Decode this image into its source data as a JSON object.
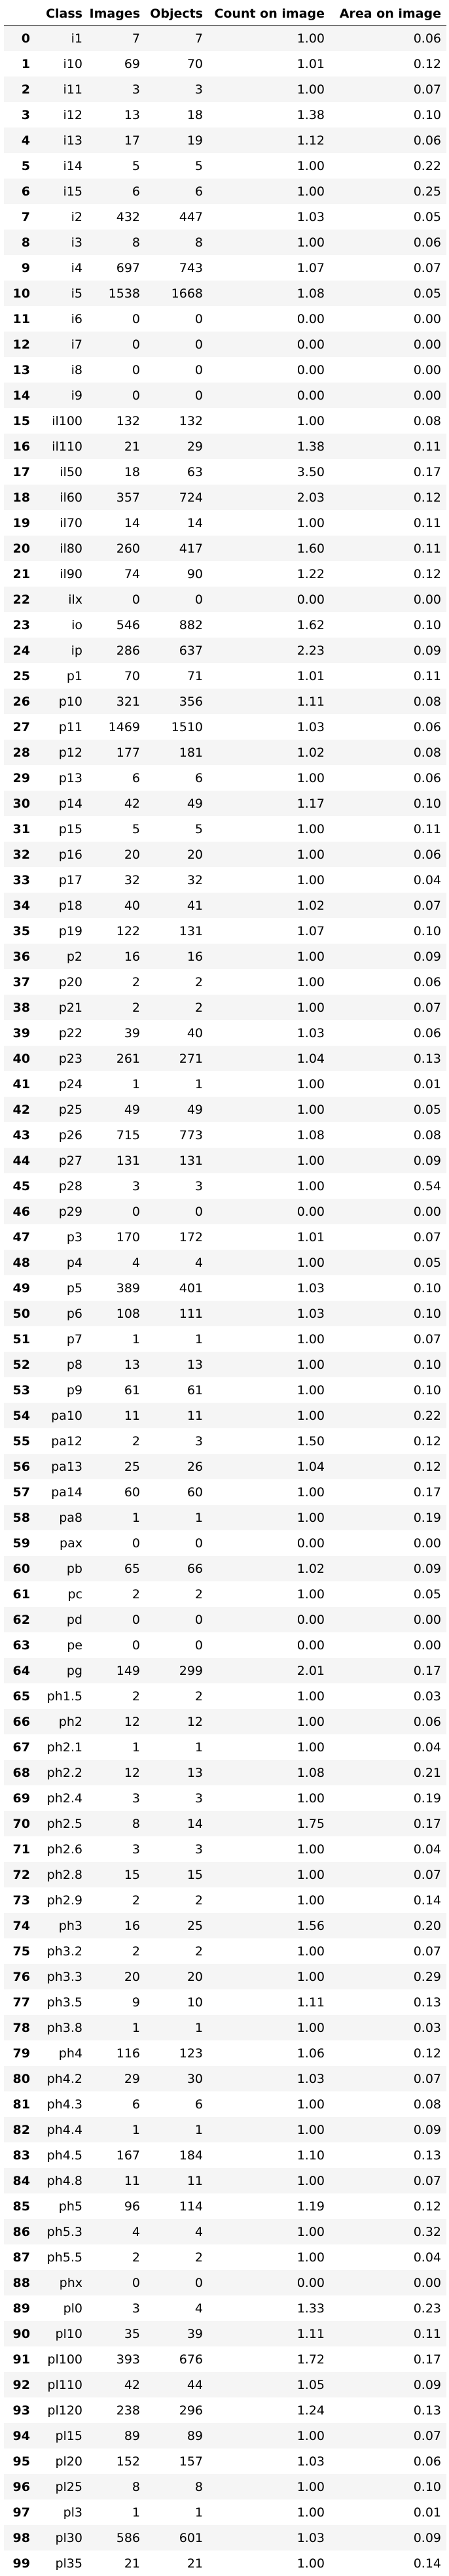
{
  "columns": [
    "",
    "Class",
    "Images",
    "Objects",
    "Count on image",
    "Area on image"
  ],
  "rows": [
    [
      "0",
      "i1",
      "7",
      "7",
      "1.00",
      "0.06"
    ],
    [
      "1",
      "i10",
      "69",
      "70",
      "1.01",
      "0.12"
    ],
    [
      "2",
      "i11",
      "3",
      "3",
      "1.00",
      "0.07"
    ],
    [
      "3",
      "i12",
      "13",
      "18",
      "1.38",
      "0.10"
    ],
    [
      "4",
      "i13",
      "17",
      "19",
      "1.12",
      "0.06"
    ],
    [
      "5",
      "i14",
      "5",
      "5",
      "1.00",
      "0.22"
    ],
    [
      "6",
      "i15",
      "6",
      "6",
      "1.00",
      "0.25"
    ],
    [
      "7",
      "i2",
      "432",
      "447",
      "1.03",
      "0.05"
    ],
    [
      "8",
      "i3",
      "8",
      "8",
      "1.00",
      "0.06"
    ],
    [
      "9",
      "i4",
      "697",
      "743",
      "1.07",
      "0.07"
    ],
    [
      "10",
      "i5",
      "1538",
      "1668",
      "1.08",
      "0.05"
    ],
    [
      "11",
      "i6",
      "0",
      "0",
      "0.00",
      "0.00"
    ],
    [
      "12",
      "i7",
      "0",
      "0",
      "0.00",
      "0.00"
    ],
    [
      "13",
      "i8",
      "0",
      "0",
      "0.00",
      "0.00"
    ],
    [
      "14",
      "i9",
      "0",
      "0",
      "0.00",
      "0.00"
    ],
    [
      "15",
      "il100",
      "132",
      "132",
      "1.00",
      "0.08"
    ],
    [
      "16",
      "il110",
      "21",
      "29",
      "1.38",
      "0.11"
    ],
    [
      "17",
      "il50",
      "18",
      "63",
      "3.50",
      "0.17"
    ],
    [
      "18",
      "il60",
      "357",
      "724",
      "2.03",
      "0.12"
    ],
    [
      "19",
      "il70",
      "14",
      "14",
      "1.00",
      "0.11"
    ],
    [
      "20",
      "il80",
      "260",
      "417",
      "1.60",
      "0.11"
    ],
    [
      "21",
      "il90",
      "74",
      "90",
      "1.22",
      "0.12"
    ],
    [
      "22",
      "ilx",
      "0",
      "0",
      "0.00",
      "0.00"
    ],
    [
      "23",
      "io",
      "546",
      "882",
      "1.62",
      "0.10"
    ],
    [
      "24",
      "ip",
      "286",
      "637",
      "2.23",
      "0.09"
    ],
    [
      "25",
      "p1",
      "70",
      "71",
      "1.01",
      "0.11"
    ],
    [
      "26",
      "p10",
      "321",
      "356",
      "1.11",
      "0.08"
    ],
    [
      "27",
      "p11",
      "1469",
      "1510",
      "1.03",
      "0.06"
    ],
    [
      "28",
      "p12",
      "177",
      "181",
      "1.02",
      "0.08"
    ],
    [
      "29",
      "p13",
      "6",
      "6",
      "1.00",
      "0.06"
    ],
    [
      "30",
      "p14",
      "42",
      "49",
      "1.17",
      "0.10"
    ],
    [
      "31",
      "p15",
      "5",
      "5",
      "1.00",
      "0.11"
    ],
    [
      "32",
      "p16",
      "20",
      "20",
      "1.00",
      "0.06"
    ],
    [
      "33",
      "p17",
      "32",
      "32",
      "1.00",
      "0.04"
    ],
    [
      "34",
      "p18",
      "40",
      "41",
      "1.02",
      "0.07"
    ],
    [
      "35",
      "p19",
      "122",
      "131",
      "1.07",
      "0.10"
    ],
    [
      "36",
      "p2",
      "16",
      "16",
      "1.00",
      "0.09"
    ],
    [
      "37",
      "p20",
      "2",
      "2",
      "1.00",
      "0.06"
    ],
    [
      "38",
      "p21",
      "2",
      "2",
      "1.00",
      "0.07"
    ],
    [
      "39",
      "p22",
      "39",
      "40",
      "1.03",
      "0.06"
    ],
    [
      "40",
      "p23",
      "261",
      "271",
      "1.04",
      "0.13"
    ],
    [
      "41",
      "p24",
      "1",
      "1",
      "1.00",
      "0.01"
    ],
    [
      "42",
      "p25",
      "49",
      "49",
      "1.00",
      "0.05"
    ],
    [
      "43",
      "p26",
      "715",
      "773",
      "1.08",
      "0.08"
    ],
    [
      "44",
      "p27",
      "131",
      "131",
      "1.00",
      "0.09"
    ],
    [
      "45",
      "p28",
      "3",
      "3",
      "1.00",
      "0.54"
    ],
    [
      "46",
      "p29",
      "0",
      "0",
      "0.00",
      "0.00"
    ],
    [
      "47",
      "p3",
      "170",
      "172",
      "1.01",
      "0.07"
    ],
    [
      "48",
      "p4",
      "4",
      "4",
      "1.00",
      "0.05"
    ],
    [
      "49",
      "p5",
      "389",
      "401",
      "1.03",
      "0.10"
    ],
    [
      "50",
      "p6",
      "108",
      "111",
      "1.03",
      "0.10"
    ],
    [
      "51",
      "p7",
      "1",
      "1",
      "1.00",
      "0.07"
    ],
    [
      "52",
      "p8",
      "13",
      "13",
      "1.00",
      "0.10"
    ],
    [
      "53",
      "p9",
      "61",
      "61",
      "1.00",
      "0.10"
    ],
    [
      "54",
      "pa10",
      "11",
      "11",
      "1.00",
      "0.22"
    ],
    [
      "55",
      "pa12",
      "2",
      "3",
      "1.50",
      "0.12"
    ],
    [
      "56",
      "pa13",
      "25",
      "26",
      "1.04",
      "0.12"
    ],
    [
      "57",
      "pa14",
      "60",
      "60",
      "1.00",
      "0.17"
    ],
    [
      "58",
      "pa8",
      "1",
      "1",
      "1.00",
      "0.19"
    ],
    [
      "59",
      "pax",
      "0",
      "0",
      "0.00",
      "0.00"
    ],
    [
      "60",
      "pb",
      "65",
      "66",
      "1.02",
      "0.09"
    ],
    [
      "61",
      "pc",
      "2",
      "2",
      "1.00",
      "0.05"
    ],
    [
      "62",
      "pd",
      "0",
      "0",
      "0.00",
      "0.00"
    ],
    [
      "63",
      "pe",
      "0",
      "0",
      "0.00",
      "0.00"
    ],
    [
      "64",
      "pg",
      "149",
      "299",
      "2.01",
      "0.17"
    ],
    [
      "65",
      "ph1.5",
      "2",
      "2",
      "1.00",
      "0.03"
    ],
    [
      "66",
      "ph2",
      "12",
      "12",
      "1.00",
      "0.06"
    ],
    [
      "67",
      "ph2.1",
      "1",
      "1",
      "1.00",
      "0.04"
    ],
    [
      "68",
      "ph2.2",
      "12",
      "13",
      "1.08",
      "0.21"
    ],
    [
      "69",
      "ph2.4",
      "3",
      "3",
      "1.00",
      "0.19"
    ],
    [
      "70",
      "ph2.5",
      "8",
      "14",
      "1.75",
      "0.17"
    ],
    [
      "71",
      "ph2.6",
      "3",
      "3",
      "1.00",
      "0.04"
    ],
    [
      "72",
      "ph2.8",
      "15",
      "15",
      "1.00",
      "0.07"
    ],
    [
      "73",
      "ph2.9",
      "2",
      "2",
      "1.00",
      "0.14"
    ],
    [
      "74",
      "ph3",
      "16",
      "25",
      "1.56",
      "0.20"
    ],
    [
      "75",
      "ph3.2",
      "2",
      "2",
      "1.00",
      "0.07"
    ],
    [
      "76",
      "ph3.3",
      "20",
      "20",
      "1.00",
      "0.29"
    ],
    [
      "77",
      "ph3.5",
      "9",
      "10",
      "1.11",
      "0.13"
    ],
    [
      "78",
      "ph3.8",
      "1",
      "1",
      "1.00",
      "0.03"
    ],
    [
      "79",
      "ph4",
      "116",
      "123",
      "1.06",
      "0.12"
    ],
    [
      "80",
      "ph4.2",
      "29",
      "30",
      "1.03",
      "0.07"
    ],
    [
      "81",
      "ph4.3",
      "6",
      "6",
      "1.00",
      "0.08"
    ],
    [
      "82",
      "ph4.4",
      "1",
      "1",
      "1.00",
      "0.09"
    ],
    [
      "83",
      "ph4.5",
      "167",
      "184",
      "1.10",
      "0.13"
    ],
    [
      "84",
      "ph4.8",
      "11",
      "11",
      "1.00",
      "0.07"
    ],
    [
      "85",
      "ph5",
      "96",
      "114",
      "1.19",
      "0.12"
    ],
    [
      "86",
      "ph5.3",
      "4",
      "4",
      "1.00",
      "0.32"
    ],
    [
      "87",
      "ph5.5",
      "2",
      "2",
      "1.00",
      "0.04"
    ],
    [
      "88",
      "phx",
      "0",
      "0",
      "0.00",
      "0.00"
    ],
    [
      "89",
      "pl0",
      "3",
      "4",
      "1.33",
      "0.23"
    ],
    [
      "90",
      "pl10",
      "35",
      "39",
      "1.11",
      "0.11"
    ],
    [
      "91",
      "pl100",
      "393",
      "676",
      "1.72",
      "0.17"
    ],
    [
      "92",
      "pl110",
      "42",
      "44",
      "1.05",
      "0.09"
    ],
    [
      "93",
      "pl120",
      "238",
      "296",
      "1.24",
      "0.13"
    ],
    [
      "94",
      "pl15",
      "89",
      "89",
      "1.00",
      "0.07"
    ],
    [
      "95",
      "pl20",
      "152",
      "157",
      "1.03",
      "0.06"
    ],
    [
      "96",
      "pl25",
      "8",
      "8",
      "1.00",
      "0.10"
    ],
    [
      "97",
      "pl3",
      "1",
      "1",
      "1.00",
      "0.01"
    ],
    [
      "98",
      "pl30",
      "586",
      "601",
      "1.03",
      "0.09"
    ],
    [
      "99",
      "pl35",
      "21",
      "21",
      "1.00",
      "0.14"
    ]
  ]
}
